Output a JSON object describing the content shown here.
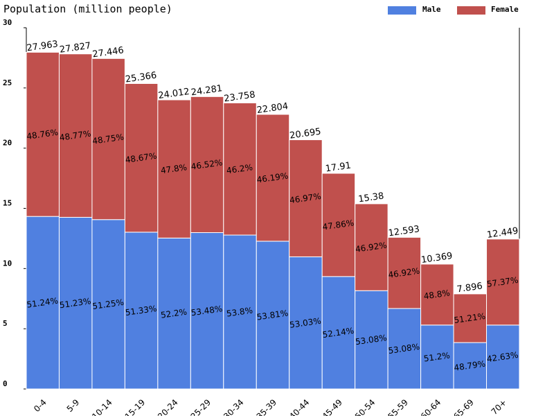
{
  "chart_data": {
    "type": "bar",
    "stacked": true,
    "title": "Population (million people)",
    "xlabel": "",
    "ylabel": "",
    "ylim": [
      0,
      30
    ],
    "yticks": [
      0,
      5,
      10,
      15,
      20,
      25,
      30
    ],
    "grid": false,
    "legend_position": "top-right",
    "categories": [
      "0-4",
      "5-9",
      "10-14",
      "15-19",
      "20-24",
      "25-29",
      "30-34",
      "35-39",
      "40-44",
      "45-49",
      "50-54",
      "55-59",
      "60-64",
      "65-69",
      "70+"
    ],
    "totals": [
      27.963,
      27.827,
      27.446,
      25.366,
      24.012,
      24.281,
      23.758,
      22.804,
      20.695,
      17.91,
      15.38,
      12.593,
      10.369,
      7.896,
      12.449
    ],
    "total_labels": [
      "27.963",
      "27.827",
      "27.446",
      "25.366",
      "24.012",
      "24.281",
      "23.758",
      "22.804",
      "20.695",
      "17.91",
      "15.38",
      "12.593",
      "10.369",
      "7.896",
      "12.449"
    ],
    "series": [
      {
        "name": "Male",
        "color": "#5080e0",
        "percent": [
          51.24,
          51.23,
          51.25,
          51.33,
          52.2,
          53.48,
          53.8,
          53.81,
          53.03,
          52.14,
          53.08,
          53.08,
          51.2,
          48.79,
          42.63
        ],
        "labels": [
          "51.24%",
          "51.23%",
          "51.25%",
          "51.33%",
          "52.2%",
          "53.48%",
          "53.8%",
          "53.81%",
          "53.03%",
          "52.14%",
          "53.08%",
          "53.08%",
          "51.2%",
          "48.79%",
          "42.63%"
        ]
      },
      {
        "name": "Female",
        "color": "#c0504d",
        "percent": [
          48.76,
          48.77,
          48.75,
          48.67,
          47.8,
          46.52,
          46.2,
          46.19,
          46.97,
          47.86,
          46.92,
          46.92,
          48.8,
          51.21,
          57.37
        ],
        "labels": [
          "48.76%",
          "48.77%",
          "48.75%",
          "48.67%",
          "47.8%",
          "46.52%",
          "46.2%",
          "46.19%",
          "46.97%",
          "47.86%",
          "46.92%",
          "46.92%",
          "48.8%",
          "51.21%",
          "57.37%"
        ]
      }
    ]
  }
}
